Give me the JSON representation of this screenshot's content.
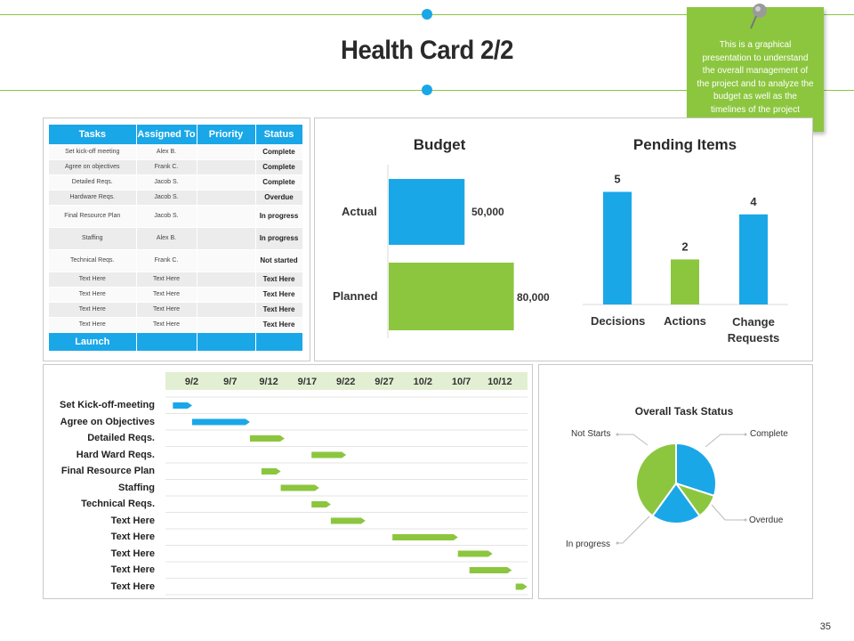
{
  "title": "Health Card 2/2",
  "note": "This is a graphical presentation to understand the overall management of the project and to analyze the budget as well as the timelines of the project",
  "page_number": "35",
  "colors": {
    "blue": "#1aa7e8",
    "green": "#8cc63f",
    "header_line": "#8cc63f"
  },
  "table": {
    "headers": [
      "Tasks",
      "Assigned To",
      "Priority",
      "Status"
    ],
    "rows": [
      {
        "task": "Set kick-off meeting",
        "assigned": "Alex B.",
        "priority": "",
        "status": "Complete"
      },
      {
        "task": "Agree on objectives",
        "assigned": "Frank C.",
        "priority": "",
        "status": "Complete"
      },
      {
        "task": "Detailed Reqs.",
        "assigned": "Jacob S.",
        "priority": "",
        "status": "Complete"
      },
      {
        "task": "Hardware Reqs.",
        "assigned": "Jacob S.",
        "priority": "",
        "status": "Overdue"
      },
      {
        "task": "Final Resource Plan",
        "assigned": "Jacob S.",
        "priority": "",
        "status": "In progress"
      },
      {
        "task": "Staffing",
        "assigned": "Alex B.",
        "priority": "",
        "status": "In progress"
      },
      {
        "task": "Technical Reqs.",
        "assigned": "Frank C.",
        "priority": "",
        "status": "Not started"
      },
      {
        "task": "Text Here",
        "assigned": "Text Here",
        "priority": "",
        "status": "Text Here"
      },
      {
        "task": "Text Here",
        "assigned": "Text Here",
        "priority": "",
        "status": "Text Here"
      },
      {
        "task": "Text Here",
        "assigned": "Text Here",
        "priority": "",
        "status": "Text Here"
      },
      {
        "task": "Text Here",
        "assigned": "Text Here",
        "priority": "",
        "status": "Text Here"
      }
    ],
    "footer": "Launch"
  },
  "chart_data": [
    {
      "type": "bar",
      "orientation": "horizontal",
      "title": "Budget",
      "categories": [
        "Actual",
        "Planned"
      ],
      "values": [
        50000,
        80000
      ],
      "value_labels": [
        "50,000",
        "80,000"
      ],
      "colors": [
        "#1aa7e8",
        "#8cc63f"
      ],
      "xlim": [
        0,
        90000
      ]
    },
    {
      "type": "bar",
      "title": "Pending Items",
      "categories": [
        "Decisions",
        "Actions",
        "Change Requests"
      ],
      "values": [
        5,
        2,
        4
      ],
      "colors": [
        "#1aa7e8",
        "#8cc63f",
        "#1aa7e8"
      ],
      "ylim": [
        0,
        6
      ]
    },
    {
      "type": "gantt",
      "dates": [
        "9/2",
        "9/7",
        "9/12",
        "9/17",
        "9/22",
        "9/27",
        "10/2",
        "10/7",
        "10/12"
      ],
      "tasks": [
        {
          "name": "Set Kick-off-meeting",
          "start": 0.1,
          "duration": 0.5,
          "color": "#1aa7e8"
        },
        {
          "name": "Agree on Objectives",
          "start": 0.6,
          "duration": 1.5,
          "color": "#1aa7e8"
        },
        {
          "name": "Detailed Reqs.",
          "start": 2.1,
          "duration": 0.9,
          "color": "#8cc63f"
        },
        {
          "name": "Hard Ward Reqs.",
          "start": 3.7,
          "duration": 0.9,
          "color": "#8cc63f"
        },
        {
          "name": "Final Resource Plan",
          "start": 2.4,
          "duration": 0.5,
          "color": "#8cc63f"
        },
        {
          "name": "Staffing",
          "start": 2.9,
          "duration": 1.0,
          "color": "#8cc63f"
        },
        {
          "name": "Technical Reqs.",
          "start": 3.7,
          "duration": 0.5,
          "color": "#8cc63f"
        },
        {
          "name": "Text Here",
          "start": 4.2,
          "duration": 0.9,
          "color": "#8cc63f"
        },
        {
          "name": "Text Here",
          "start": 5.8,
          "duration": 1.7,
          "color": "#8cc63f"
        },
        {
          "name": "Text Here",
          "start": 7.5,
          "duration": 0.9,
          "color": "#8cc63f"
        },
        {
          "name": "Text Here",
          "start": 7.8,
          "duration": 1.1,
          "color": "#8cc63f"
        },
        {
          "name": "Text Here",
          "start": 9.0,
          "duration": 0.3,
          "color": "#8cc63f"
        }
      ]
    },
    {
      "type": "pie",
      "title": "Overall Task Status",
      "labels": [
        "Complete",
        "Overdue",
        "In progress",
        "Not Starts"
      ],
      "values": [
        30,
        10,
        20,
        40
      ],
      "colors": [
        "#1aa7e8",
        "#8cc63f",
        "#1aa7e8",
        "#8cc63f"
      ]
    }
  ]
}
